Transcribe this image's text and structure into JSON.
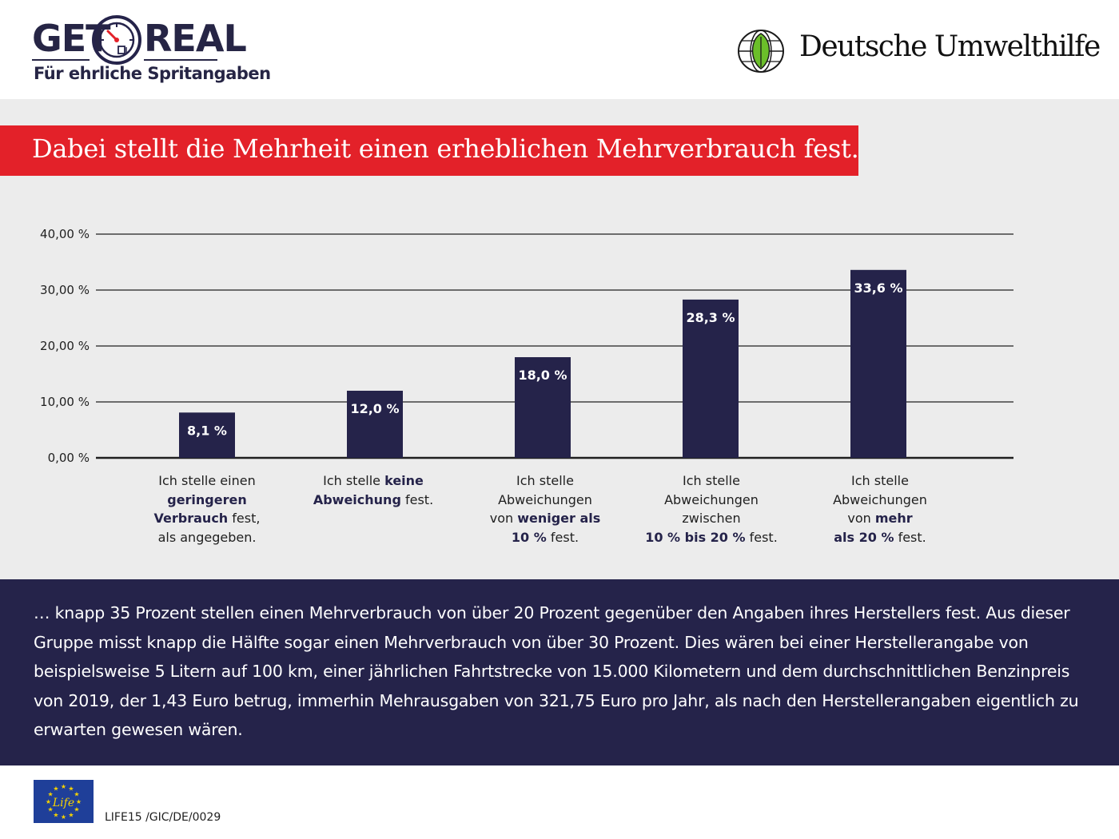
{
  "header": {
    "logo_left": {
      "word_left": "GET",
      "word_right": "REAL",
      "tagline": "Für ehrliche Spritangaben"
    },
    "logo_right": {
      "name": "Deutsche Umwelthilfe"
    },
    "colors": {
      "navy": "#25234a",
      "red": "#e32129",
      "green": "#6bbf2a"
    }
  },
  "title_banner": {
    "text": "Dabei stellt die Mehrheit einen erheblichen Mehrverbrauch fest."
  },
  "chart_data": {
    "type": "bar",
    "title": "",
    "xlabel": "",
    "ylabel": "",
    "ylim": [
      0,
      40
    ],
    "yticks": [
      {
        "value": 0,
        "label": "0,00 %"
      },
      {
        "value": 10,
        "label": "10,00 %"
      },
      {
        "value": 20,
        "label": "20,00 %"
      },
      {
        "value": 30,
        "label": "30,00 %"
      },
      {
        "value": 40,
        "label": "40,00 %"
      }
    ],
    "grid": true,
    "categories": [
      [
        {
          "t": "Ich stelle einen"
        },
        {
          "t": "geringeren",
          "b": true
        },
        {
          "t": "Verbrauch",
          "b": true,
          "after": " fest,"
        },
        {
          "t": "als angegeben."
        }
      ],
      [
        {
          "t": "Ich stelle ",
          "bold_part": "keine"
        },
        {
          "t": "Abweichung",
          "b": true,
          "after": " fest."
        }
      ],
      [
        {
          "t": "Ich stelle"
        },
        {
          "t": "Abweichungen"
        },
        {
          "t": "von ",
          "bold_part": "weniger als"
        },
        {
          "t": "10 %",
          "b": true,
          "after": " fest."
        }
      ],
      [
        {
          "t": "Ich stelle"
        },
        {
          "t": "Abweichungen"
        },
        {
          "t": "zwischen"
        },
        {
          "t": "10 % bis 20 %",
          "b": true,
          "after": " fest."
        }
      ],
      [
        {
          "t": "Ich stelle"
        },
        {
          "t": "Abweichungen"
        },
        {
          "t": "von ",
          "bold_part": "mehr"
        },
        {
          "t": "als 20 %",
          "b": true,
          "after": " fest."
        }
      ]
    ],
    "values": [
      8.1,
      12.0,
      18.0,
      28.3,
      33.6
    ],
    "value_labels": [
      "8,1 %",
      "12,0 %",
      "18,0 %",
      "28,3 %",
      "33,6 %"
    ],
    "bar_color": "#25234a"
  },
  "footer": {
    "text": "… knapp 35 Prozent stellen einen Mehrverbrauch von über 20 Prozent gegenüber den Angaben ihres Herstellers fest. Aus dieser Gruppe misst knapp die Hälfte sogar einen Mehrverbrauch von über 30 Prozent. Dies wären bei einer Herstellerangabe von beispielsweise 5 Litern auf 100 km, einer jährlichen Fahrtstrecke von 15.000 Kilometern und dem durchschnittlichen Benzinpreis von 2019, der 1,43 Euro betrug, immerhin Mehrausgaben von 321,75 Euro pro Jahr, als nach den Herstellerangaben eigentlich zu erwarten gewesen wären."
  },
  "eu_logo": {
    "text": "Life"
  },
  "life_code": "LIFE15 /GIC/DE/0029"
}
